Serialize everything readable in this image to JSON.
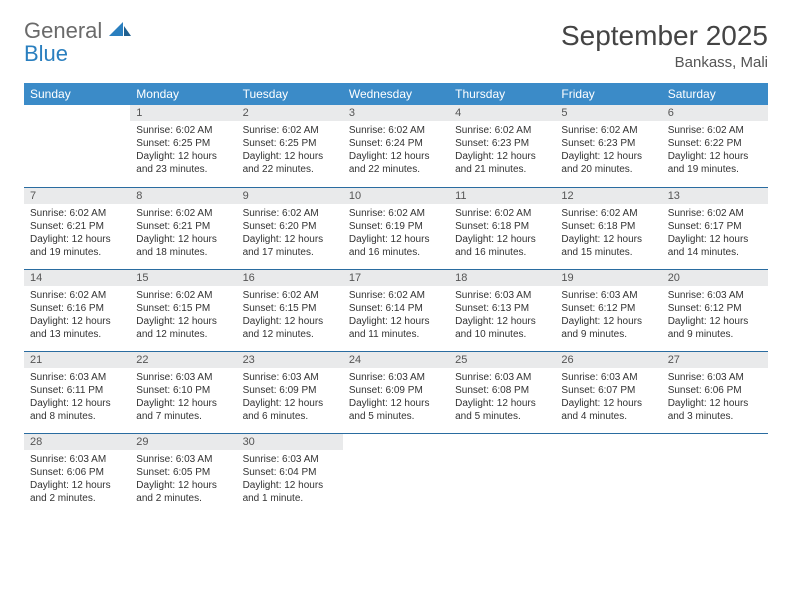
{
  "logo": {
    "line1": "General",
    "line2": "Blue"
  },
  "title": "September 2025",
  "location": "Bankass, Mali",
  "colors": {
    "header_bg": "#3b8bc8",
    "header_text": "#ffffff",
    "daynum_bg": "#e9eaeb",
    "row_border": "#2a6ca0",
    "logo_gray": "#6a6a6a",
    "logo_blue": "#2a7fbf"
  },
  "typography": {
    "title_fontsize": 28,
    "location_fontsize": 15,
    "dayhead_fontsize": 12,
    "body_fontsize": 10
  },
  "day_headers": [
    "Sunday",
    "Monday",
    "Tuesday",
    "Wednesday",
    "Thursday",
    "Friday",
    "Saturday"
  ],
  "weeks": [
    [
      null,
      {
        "n": "1",
        "sr": "Sunrise: 6:02 AM",
        "ss": "Sunset: 6:25 PM",
        "d1": "Daylight: 12 hours",
        "d2": "and 23 minutes."
      },
      {
        "n": "2",
        "sr": "Sunrise: 6:02 AM",
        "ss": "Sunset: 6:25 PM",
        "d1": "Daylight: 12 hours",
        "d2": "and 22 minutes."
      },
      {
        "n": "3",
        "sr": "Sunrise: 6:02 AM",
        "ss": "Sunset: 6:24 PM",
        "d1": "Daylight: 12 hours",
        "d2": "and 22 minutes."
      },
      {
        "n": "4",
        "sr": "Sunrise: 6:02 AM",
        "ss": "Sunset: 6:23 PM",
        "d1": "Daylight: 12 hours",
        "d2": "and 21 minutes."
      },
      {
        "n": "5",
        "sr": "Sunrise: 6:02 AM",
        "ss": "Sunset: 6:23 PM",
        "d1": "Daylight: 12 hours",
        "d2": "and 20 minutes."
      },
      {
        "n": "6",
        "sr": "Sunrise: 6:02 AM",
        "ss": "Sunset: 6:22 PM",
        "d1": "Daylight: 12 hours",
        "d2": "and 19 minutes."
      }
    ],
    [
      {
        "n": "7",
        "sr": "Sunrise: 6:02 AM",
        "ss": "Sunset: 6:21 PM",
        "d1": "Daylight: 12 hours",
        "d2": "and 19 minutes."
      },
      {
        "n": "8",
        "sr": "Sunrise: 6:02 AM",
        "ss": "Sunset: 6:21 PM",
        "d1": "Daylight: 12 hours",
        "d2": "and 18 minutes."
      },
      {
        "n": "9",
        "sr": "Sunrise: 6:02 AM",
        "ss": "Sunset: 6:20 PM",
        "d1": "Daylight: 12 hours",
        "d2": "and 17 minutes."
      },
      {
        "n": "10",
        "sr": "Sunrise: 6:02 AM",
        "ss": "Sunset: 6:19 PM",
        "d1": "Daylight: 12 hours",
        "d2": "and 16 minutes."
      },
      {
        "n": "11",
        "sr": "Sunrise: 6:02 AM",
        "ss": "Sunset: 6:18 PM",
        "d1": "Daylight: 12 hours",
        "d2": "and 16 minutes."
      },
      {
        "n": "12",
        "sr": "Sunrise: 6:02 AM",
        "ss": "Sunset: 6:18 PM",
        "d1": "Daylight: 12 hours",
        "d2": "and 15 minutes."
      },
      {
        "n": "13",
        "sr": "Sunrise: 6:02 AM",
        "ss": "Sunset: 6:17 PM",
        "d1": "Daylight: 12 hours",
        "d2": "and 14 minutes."
      }
    ],
    [
      {
        "n": "14",
        "sr": "Sunrise: 6:02 AM",
        "ss": "Sunset: 6:16 PM",
        "d1": "Daylight: 12 hours",
        "d2": "and 13 minutes."
      },
      {
        "n": "15",
        "sr": "Sunrise: 6:02 AM",
        "ss": "Sunset: 6:15 PM",
        "d1": "Daylight: 12 hours",
        "d2": "and 12 minutes."
      },
      {
        "n": "16",
        "sr": "Sunrise: 6:02 AM",
        "ss": "Sunset: 6:15 PM",
        "d1": "Daylight: 12 hours",
        "d2": "and 12 minutes."
      },
      {
        "n": "17",
        "sr": "Sunrise: 6:02 AM",
        "ss": "Sunset: 6:14 PM",
        "d1": "Daylight: 12 hours",
        "d2": "and 11 minutes."
      },
      {
        "n": "18",
        "sr": "Sunrise: 6:03 AM",
        "ss": "Sunset: 6:13 PM",
        "d1": "Daylight: 12 hours",
        "d2": "and 10 minutes."
      },
      {
        "n": "19",
        "sr": "Sunrise: 6:03 AM",
        "ss": "Sunset: 6:12 PM",
        "d1": "Daylight: 12 hours",
        "d2": "and 9 minutes."
      },
      {
        "n": "20",
        "sr": "Sunrise: 6:03 AM",
        "ss": "Sunset: 6:12 PM",
        "d1": "Daylight: 12 hours",
        "d2": "and 9 minutes."
      }
    ],
    [
      {
        "n": "21",
        "sr": "Sunrise: 6:03 AM",
        "ss": "Sunset: 6:11 PM",
        "d1": "Daylight: 12 hours",
        "d2": "and 8 minutes."
      },
      {
        "n": "22",
        "sr": "Sunrise: 6:03 AM",
        "ss": "Sunset: 6:10 PM",
        "d1": "Daylight: 12 hours",
        "d2": "and 7 minutes."
      },
      {
        "n": "23",
        "sr": "Sunrise: 6:03 AM",
        "ss": "Sunset: 6:09 PM",
        "d1": "Daylight: 12 hours",
        "d2": "and 6 minutes."
      },
      {
        "n": "24",
        "sr": "Sunrise: 6:03 AM",
        "ss": "Sunset: 6:09 PM",
        "d1": "Daylight: 12 hours",
        "d2": "and 5 minutes."
      },
      {
        "n": "25",
        "sr": "Sunrise: 6:03 AM",
        "ss": "Sunset: 6:08 PM",
        "d1": "Daylight: 12 hours",
        "d2": "and 5 minutes."
      },
      {
        "n": "26",
        "sr": "Sunrise: 6:03 AM",
        "ss": "Sunset: 6:07 PM",
        "d1": "Daylight: 12 hours",
        "d2": "and 4 minutes."
      },
      {
        "n": "27",
        "sr": "Sunrise: 6:03 AM",
        "ss": "Sunset: 6:06 PM",
        "d1": "Daylight: 12 hours",
        "d2": "and 3 minutes."
      }
    ],
    [
      {
        "n": "28",
        "sr": "Sunrise: 6:03 AM",
        "ss": "Sunset: 6:06 PM",
        "d1": "Daylight: 12 hours",
        "d2": "and 2 minutes."
      },
      {
        "n": "29",
        "sr": "Sunrise: 6:03 AM",
        "ss": "Sunset: 6:05 PM",
        "d1": "Daylight: 12 hours",
        "d2": "and 2 minutes."
      },
      {
        "n": "30",
        "sr": "Sunrise: 6:03 AM",
        "ss": "Sunset: 6:04 PM",
        "d1": "Daylight: 12 hours",
        "d2": "and 1 minute."
      },
      null,
      null,
      null,
      null
    ]
  ]
}
